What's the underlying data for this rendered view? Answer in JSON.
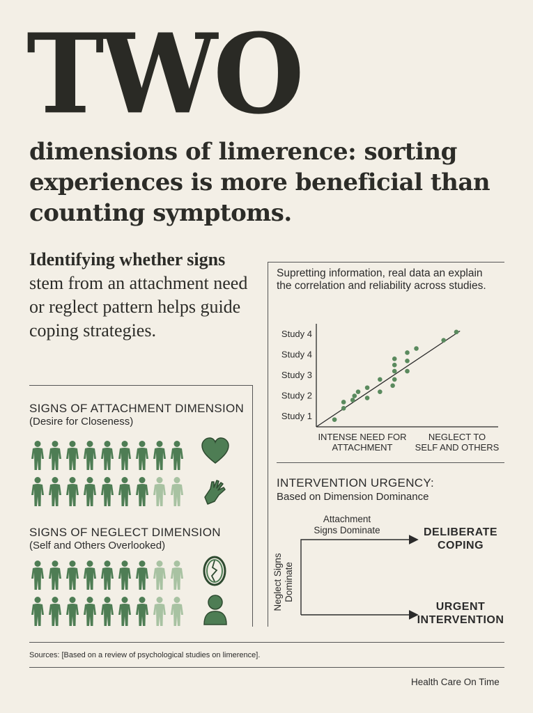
{
  "title_big": "TWO",
  "headline": "dimensions of limerence: sorting experiences is more beneficial than counting symptoms.",
  "intro": {
    "bold": "Identifying whether signs",
    "rest": "stem from an attachment need or reglect pattern helps guide coping strategies."
  },
  "attachment": {
    "title": "SIGNS OF ATTACHMENT DIMENSION",
    "subtitle": "(Desire for Closeness)",
    "icons": [
      "heart-icon",
      "hands-icon"
    ],
    "row1_filled": 9,
    "row2_filled": 7,
    "row_total": 9
  },
  "neglect": {
    "title": "SIGNS OF NEGLECT DIMENSION",
    "subtitle": "(Self and Others Overlooked)",
    "icons": [
      "broken-mirror-icon",
      "person-bust-icon"
    ],
    "row1_filled": 7,
    "row2_filled": 7,
    "row_total": 9
  },
  "chart_data": {
    "type": "scatter",
    "title": "Supretting information, real data an explain the correlation and reliability across studies.",
    "ytick_labels": [
      "Study 1",
      "Study 2",
      "Study 3",
      "Study 4",
      "Study 4"
    ],
    "xlabels": [
      "INTENSE NEED FOR ATTACHMENT",
      "NEGLECT TO SELF AND OTHERS"
    ],
    "xlim": [
      0,
      10
    ],
    "ylim": [
      0,
      5
    ],
    "points": [
      [
        1.0,
        0.35
      ],
      [
        1.5,
        0.9
      ],
      [
        1.5,
        1.2
      ],
      [
        2.0,
        1.3
      ],
      [
        2.1,
        1.5
      ],
      [
        2.3,
        1.7
      ],
      [
        2.8,
        1.4
      ],
      [
        2.8,
        1.9
      ],
      [
        3.5,
        1.7
      ],
      [
        3.5,
        2.3
      ],
      [
        4.2,
        2.0
      ],
      [
        4.3,
        2.3
      ],
      [
        4.3,
        2.7
      ],
      [
        4.3,
        3.0
      ],
      [
        4.3,
        3.3
      ],
      [
        5.0,
        2.7
      ],
      [
        5.0,
        3.2
      ],
      [
        5.0,
        3.6
      ],
      [
        5.5,
        3.8
      ],
      [
        7.0,
        4.2
      ],
      [
        7.7,
        4.6
      ]
    ],
    "trendline": [
      [
        0,
        0
      ],
      [
        7.9,
        4.65
      ]
    ],
    "color": "#5a8a5e"
  },
  "urgency": {
    "title": "INTERVENTION URGENCY:",
    "subtitle": "Based on Dimension Dominance",
    "top_label": "Attachment Signs Dominate",
    "side_label": "Neglect Signs Dominate",
    "outcome_top": "DELIBERATE COPING",
    "outcome_bottom": "URGENT INTERVENTION"
  },
  "sources": "Sources: [Based on a review of psychological studies on limerence].",
  "brand": "Health Care On Time",
  "colors": {
    "green_dark": "#4e7d54",
    "green_light": "#a8c2a2",
    "bg": "#f3efe6"
  }
}
